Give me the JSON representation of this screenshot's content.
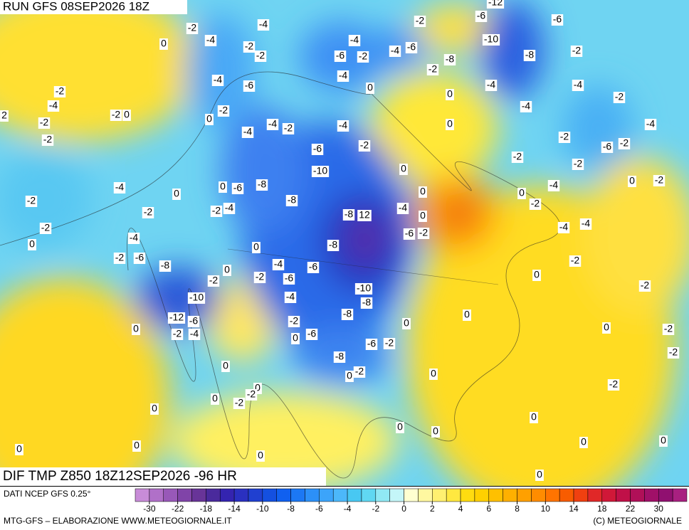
{
  "header": {
    "run": "RUN GFS 08SEP2026 18Z"
  },
  "map": {
    "title": "DIF TMP Z850 18Z12SEP2026 -96 HR",
    "labels": [
      "-2",
      "-4",
      "0",
      "-4",
      "-2",
      "-2",
      "-4",
      "-6",
      "-2",
      "-4",
      "-6",
      "-2",
      "-6",
      "-12",
      "-10",
      "-8",
      "-6",
      "-2",
      "-8",
      "-2",
      "-4",
      "0",
      "0",
      "-4",
      "-4",
      "-4",
      "-2",
      "-2",
      "-4",
      "-2",
      "0",
      "-4",
      "-6",
      "-2",
      "0",
      "-2",
      "-2",
      "2",
      "-4",
      "-4",
      "-2",
      "-4",
      "-2",
      "-6",
      "-10",
      "0",
      "-2",
      "-6",
      "-2",
      "-4",
      "-2",
      "-2",
      "0",
      "-2",
      "-4",
      "0",
      "0",
      "-6",
      "-8",
      "0",
      "0",
      "0",
      "-4",
      "-2",
      "-2",
      "-8",
      "-4",
      "-2",
      "-2",
      "-4",
      "-8",
      "12",
      "0",
      "-2",
      "-4",
      "-6",
      "-2",
      "-4",
      "-4",
      "0",
      "0",
      "-8",
      "-2",
      "-6",
      "-8",
      "-4",
      "-6",
      "0",
      "-2",
      "0",
      "-2",
      "-2",
      "-6",
      "-10",
      "-2",
      "-10",
      "-4",
      "-8",
      "0",
      "-8",
      "-12",
      "-6",
      "-2",
      "0",
      "0",
      "0",
      "-2",
      "-2",
      "-4",
      "-6",
      "0",
      "-6",
      "-2",
      "-2",
      "-8",
      "0",
      "-2",
      "0",
      "0",
      "-2",
      "0",
      "-2",
      "0",
      "-2",
      "0",
      "0",
      "0",
      "0",
      "0",
      "0",
      "0",
      "0",
      "0",
      "0",
      "0"
    ]
  },
  "legend": {
    "source": "DATI NCEP GFS 0.25°",
    "colors": [
      "#c88cd8",
      "#b070c8",
      "#9858b8",
      "#8044a8",
      "#683498",
      "#4a2a9c",
      "#3424b0",
      "#2a30c0",
      "#2040d0",
      "#1450e0",
      "#1060f0",
      "#1c78f4",
      "#2c90f8",
      "#3ca4fa",
      "#4cb8fa",
      "#48c8f2",
      "#60d8f2",
      "#90e8f4",
      "#c4f6f8",
      "#ffffd0",
      "#fff8a0",
      "#fff070",
      "#ffe840",
      "#ffdc10",
      "#ffd000",
      "#ffc000",
      "#ffb000",
      "#ffa000",
      "#ff8c00",
      "#ff7400",
      "#f85c00",
      "#f04010",
      "#e02828",
      "#d01838",
      "#c01048",
      "#b01058",
      "#a01068",
      "#901070",
      "#a82080"
    ],
    "ticks": [
      -30,
      -22,
      -18,
      -14,
      -10,
      -8,
      -6,
      -4,
      -2,
      0,
      2,
      4,
      6,
      8,
      10,
      14,
      18,
      22,
      30
    ]
  },
  "footer": {
    "left": "MTG-GFS – ELABORAZIONE WWW.METEOGIORNALE.IT",
    "right": "(C) METEOGIORNALE"
  }
}
